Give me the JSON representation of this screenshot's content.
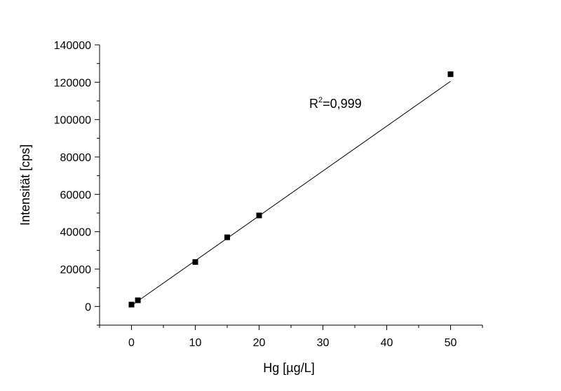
{
  "chart_data": {
    "type": "scatter",
    "xlabel": "Hg [µg/L]",
    "ylabel": "Intensität [cps]",
    "xlim": [
      -5,
      55
    ],
    "ylim": [
      -10000,
      140000
    ],
    "xticks": [
      0,
      10,
      20,
      30,
      40,
      50
    ],
    "yticks": [
      0,
      20000,
      40000,
      60000,
      80000,
      100000,
      120000,
      140000
    ],
    "xtick_labels": [
      "0",
      "10",
      "20",
      "30",
      "40",
      "50"
    ],
    "ytick_labels": [
      "0",
      "20000",
      "40000",
      "60000",
      "80000",
      "100000",
      "120000",
      "140000"
    ],
    "grid": false,
    "series": [
      {
        "marker": "square",
        "color": "#000000",
        "x": [
          0,
          1,
          10,
          15,
          20,
          50
        ],
        "y": [
          1000,
          3300,
          23800,
          37000,
          48700,
          124300
        ]
      }
    ],
    "fit_line": {
      "x": [
        0,
        50
      ],
      "y": [
        500,
        120500
      ],
      "color": "#000000"
    },
    "annotation": {
      "base": "R",
      "superscript": "2",
      "rest": "=0,999"
    }
  }
}
